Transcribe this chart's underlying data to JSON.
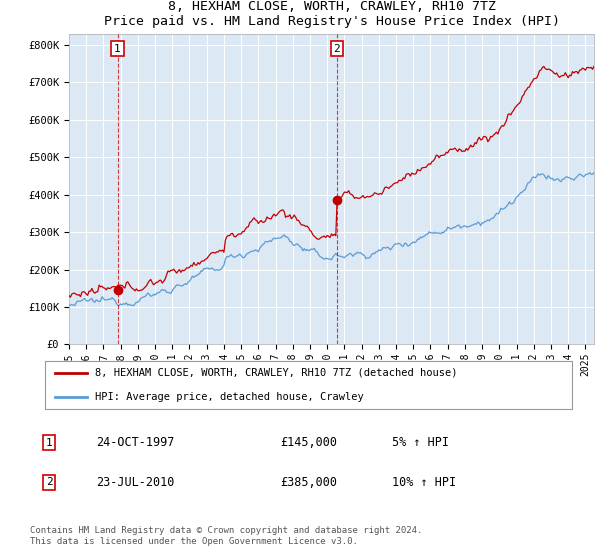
{
  "title": "8, HEXHAM CLOSE, WORTH, CRAWLEY, RH10 7TZ",
  "subtitle": "Price paid vs. HM Land Registry's House Price Index (HPI)",
  "ylabel_ticks": [
    "£0",
    "£100K",
    "£200K",
    "£300K",
    "£400K",
    "£500K",
    "£600K",
    "£700K",
    "£800K"
  ],
  "ytick_values": [
    0,
    100000,
    200000,
    300000,
    400000,
    500000,
    600000,
    700000,
    800000
  ],
  "ylim": [
    0,
    830000
  ],
  "xlim_start": 1995.0,
  "xlim_end": 2025.5,
  "background_color": "#dce9f5",
  "hpi_color": "#5b9bd5",
  "price_color": "#c00000",
  "t1": 1997.82,
  "p1": 145000,
  "t2": 2010.56,
  "p2": 385000,
  "legend_line1": "8, HEXHAM CLOSE, WORTH, CRAWLEY, RH10 7TZ (detached house)",
  "legend_line2": "HPI: Average price, detached house, Crawley",
  "annotation1_date": "24-OCT-1997",
  "annotation1_price": "£145,000",
  "annotation1_pct": "5% ↑ HPI",
  "annotation2_date": "23-JUL-2010",
  "annotation2_price": "£385,000",
  "annotation2_pct": "10% ↑ HPI",
  "footer": "Contains HM Land Registry data © Crown copyright and database right 2024.\nThis data is licensed under the Open Government Licence v3.0.",
  "xtick_years": [
    1995,
    1996,
    1997,
    1998,
    1999,
    2000,
    2001,
    2002,
    2003,
    2004,
    2005,
    2006,
    2007,
    2008,
    2009,
    2010,
    2011,
    2012,
    2013,
    2014,
    2015,
    2016,
    2017,
    2018,
    2019,
    2020,
    2021,
    2022,
    2023,
    2024,
    2025
  ]
}
